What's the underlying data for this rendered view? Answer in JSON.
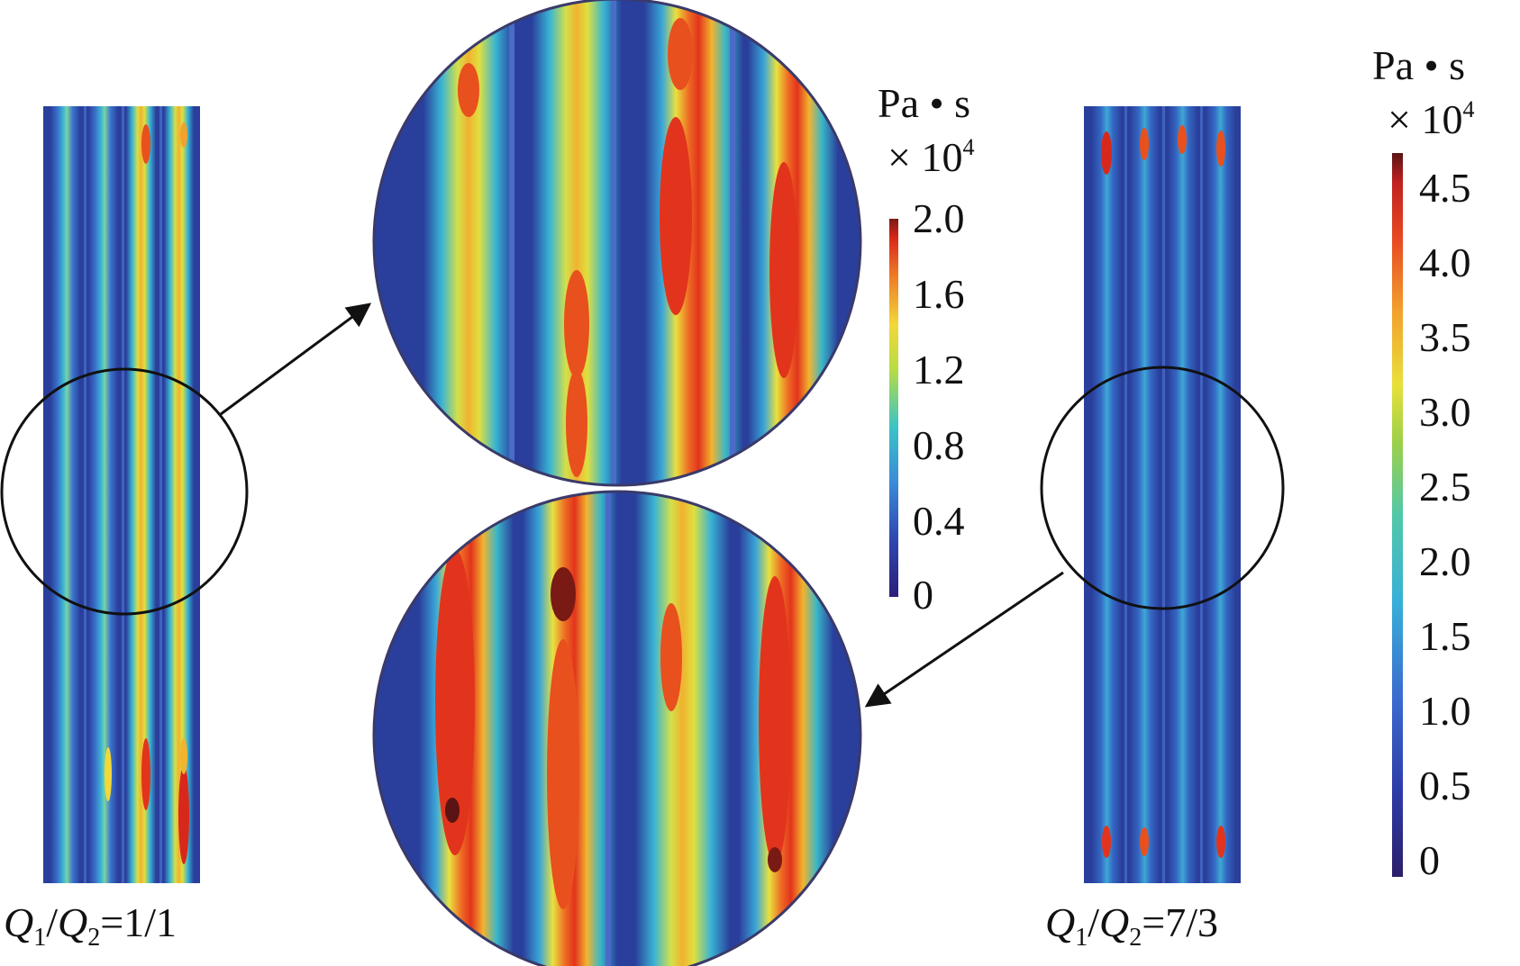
{
  "left_label": {
    "q1": "Q",
    "sub1": "1",
    "slash": "/",
    "q2": "Q",
    "sub2": "2",
    "ratio": "=1/1"
  },
  "right_label": {
    "q1": "Q",
    "sub1": "1",
    "slash": "/",
    "q2": "Q",
    "sub2": "2",
    "ratio": "=7/3"
  },
  "colorbar_small": {
    "unit": "Pa • s",
    "scale_prefix": "× 10",
    "scale_exp": "4",
    "ticks": [
      "2.0",
      "1.6",
      "1.2",
      "0.8",
      "0.4",
      "0"
    ]
  },
  "colorbar_large": {
    "unit": "Pa • s",
    "scale_prefix": "× 10",
    "scale_exp": "4",
    "ticks": [
      "4.5",
      "4.0",
      "3.5",
      "3.0",
      "2.5",
      "2.0",
      "1.5",
      "1.0",
      "0.5",
      "0"
    ]
  },
  "colors": {
    "background_blue": "#2a3f9c",
    "channel_blue": "#3a5cc0",
    "cyan": "#33b8d6",
    "yellow": "#e6e640",
    "red": "#e83a1e",
    "dark_red": "#7a1a14",
    "outline": "#111111"
  }
}
